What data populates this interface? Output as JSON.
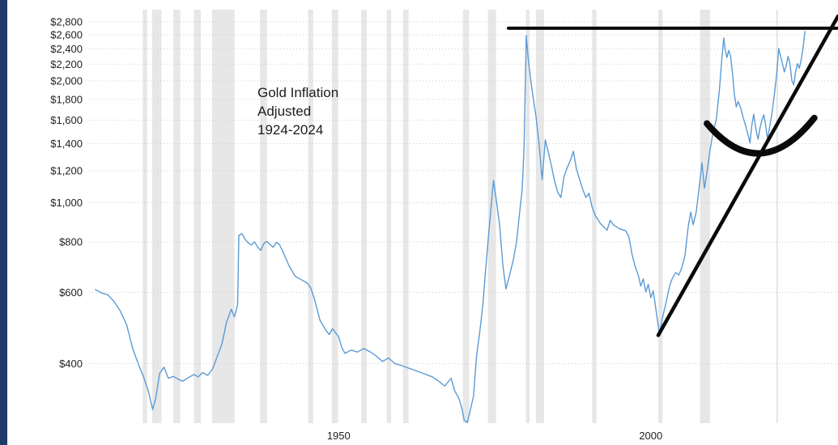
{
  "page": {
    "left_strip_color": "#1e3a66",
    "background_color": "#ffffff"
  },
  "chart_data": {
    "type": "line",
    "title": "Gold Inflation Adjusted 1924-2024",
    "title_lines": [
      "Gold Inflation",
      "Adjusted",
      "1924-2024"
    ],
    "legend": "none",
    "grid": "horizontal-dotted",
    "grid_color": "#cccccc",
    "band_color": "#e7e7e7",
    "axis_label_color": "#222222",
    "x_axis": {
      "range": [
        1910,
        2030
      ],
      "ticks": [
        {
          "year": 1950,
          "label": "1950"
        },
        {
          "year": 2000,
          "label": "2000"
        }
      ]
    },
    "y_axis": {
      "scale": "log",
      "range": [
        285,
        3000
      ],
      "ticks": [
        {
          "value": 2800,
          "label": "$2,800"
        },
        {
          "value": 2600,
          "label": "$2,600"
        },
        {
          "value": 2400,
          "label": "$2,400"
        },
        {
          "value": 2200,
          "label": "$2,200"
        },
        {
          "value": 2000,
          "label": "$2,000"
        },
        {
          "value": 1800,
          "label": "$1,800"
        },
        {
          "value": 1600,
          "label": "$1,600"
        },
        {
          "value": 1400,
          "label": "$1,400"
        },
        {
          "value": 1200,
          "label": "$1,200"
        },
        {
          "value": 1000,
          "label": "$1,000"
        },
        {
          "value": 800,
          "label": "$800"
        },
        {
          "value": 600,
          "label": "$600"
        },
        {
          "value": 400,
          "label": "$400"
        }
      ]
    },
    "recession_bands": [
      [
        1918.6,
        1919.3
      ],
      [
        1920.1,
        1921.6
      ],
      [
        1923.5,
        1924.6
      ],
      [
        1926.8,
        1927.9
      ],
      [
        1929.7,
        1933.3
      ],
      [
        1937.4,
        1938.5
      ],
      [
        1945.1,
        1945.9
      ],
      [
        1948.9,
        1949.9
      ],
      [
        1953.6,
        1954.5
      ],
      [
        1957.7,
        1958.4
      ],
      [
        1960.3,
        1961.2
      ],
      [
        1969.9,
        1970.9
      ],
      [
        1973.9,
        1975.2
      ],
      [
        1980.0,
        1980.6
      ],
      [
        1981.6,
        1982.9
      ],
      [
        1990.6,
        1991.3
      ],
      [
        2001.2,
        2001.9
      ],
      [
        2007.9,
        2009.5
      ],
      [
        2020.1,
        2020.4
      ]
    ],
    "series": [
      {
        "name": "Gold Price (Inflation Adjusted)",
        "color": "#5b9bd5",
        "points": [
          [
            1911,
            610
          ],
          [
            1912,
            598
          ],
          [
            1913,
            592
          ],
          [
            1914,
            570
          ],
          [
            1915,
            540
          ],
          [
            1916,
            500
          ],
          [
            1917,
            435
          ],
          [
            1918,
            395
          ],
          [
            1918.7,
            372
          ],
          [
            1919.5,
            342
          ],
          [
            1920.2,
            308
          ],
          [
            1920.7,
            330
          ],
          [
            1921.3,
            378
          ],
          [
            1922,
            392
          ],
          [
            1922.7,
            368
          ],
          [
            1923.5,
            372
          ],
          [
            1924.3,
            366
          ],
          [
            1925,
            362
          ],
          [
            1926,
            370
          ],
          [
            1926.8,
            376
          ],
          [
            1927.5,
            371
          ],
          [
            1928.2,
            380
          ],
          [
            1929,
            374
          ],
          [
            1929.8,
            388
          ],
          [
            1930.5,
            415
          ],
          [
            1931.3,
            448
          ],
          [
            1932,
            505
          ],
          [
            1932.8,
            545
          ],
          [
            1933.3,
            522
          ],
          [
            1933.8,
            560
          ],
          [
            1934,
            830
          ],
          [
            1934.5,
            838
          ],
          [
            1935,
            812
          ],
          [
            1935.5,
            795
          ],
          [
            1936,
            786
          ],
          [
            1936.5,
            800
          ],
          [
            1937,
            778
          ],
          [
            1937.5,
            762
          ],
          [
            1938,
            792
          ],
          [
            1938.5,
            802
          ],
          [
            1939,
            788
          ],
          [
            1939.5,
            776
          ],
          [
            1940,
            798
          ],
          [
            1940.5,
            788
          ],
          [
            1941,
            760
          ],
          [
            1942,
            700
          ],
          [
            1943,
            658
          ],
          [
            1944,
            645
          ],
          [
            1945,
            632
          ],
          [
            1945.5,
            616
          ],
          [
            1946,
            586
          ],
          [
            1947,
            512
          ],
          [
            1948,
            482
          ],
          [
            1948.5,
            472
          ],
          [
            1949,
            488
          ],
          [
            1950,
            466
          ],
          [
            1950.5,
            438
          ],
          [
            1951,
            424
          ],
          [
            1952,
            432
          ],
          [
            1953,
            427
          ],
          [
            1954,
            436
          ],
          [
            1955,
            428
          ],
          [
            1956,
            418
          ],
          [
            1957,
            405
          ],
          [
            1958,
            413
          ],
          [
            1959,
            400
          ],
          [
            1960,
            396
          ],
          [
            1961,
            391
          ],
          [
            1962,
            386
          ],
          [
            1963,
            381
          ],
          [
            1964,
            376
          ],
          [
            1965,
            371
          ],
          [
            1966,
            362
          ],
          [
            1967,
            352
          ],
          [
            1968,
            368
          ],
          [
            1968.6,
            342
          ],
          [
            1969.2,
            330
          ],
          [
            1969.7,
            312
          ],
          [
            1970.1,
            290
          ],
          [
            1970.6,
            286
          ],
          [
            1971.1,
            308
          ],
          [
            1971.6,
            332
          ],
          [
            1972.1,
            420
          ],
          [
            1972.6,
            478
          ],
          [
            1973.1,
            560
          ],
          [
            1973.6,
            700
          ],
          [
            1974.1,
            860
          ],
          [
            1974.8,
            1135
          ],
          [
            1975.3,
            1000
          ],
          [
            1975.8,
            875
          ],
          [
            1976.3,
            700
          ],
          [
            1976.8,
            612
          ],
          [
            1977.3,
            655
          ],
          [
            1978,
            725
          ],
          [
            1978.5,
            800
          ],
          [
            1979,
            950
          ],
          [
            1979.4,
            1080
          ],
          [
            1979.7,
            1380
          ],
          [
            1980.05,
            2590
          ],
          [
            1980.35,
            2280
          ],
          [
            1980.7,
            2050
          ],
          [
            1981.1,
            1840
          ],
          [
            1981.6,
            1640
          ],
          [
            1982.1,
            1400
          ],
          [
            1982.6,
            1140
          ],
          [
            1983.1,
            1430
          ],
          [
            1983.6,
            1330
          ],
          [
            1984.1,
            1230
          ],
          [
            1984.6,
            1130
          ],
          [
            1985.1,
            1060
          ],
          [
            1985.6,
            1030
          ],
          [
            1986.1,
            1160
          ],
          [
            1986.6,
            1220
          ],
          [
            1987.1,
            1270
          ],
          [
            1987.6,
            1340
          ],
          [
            1988.1,
            1210
          ],
          [
            1988.6,
            1140
          ],
          [
            1989.1,
            1080
          ],
          [
            1989.6,
            1030
          ],
          [
            1990.1,
            1055
          ],
          [
            1990.6,
            975
          ],
          [
            1991.1,
            930
          ],
          [
            1992,
            885
          ],
          [
            1993,
            855
          ],
          [
            1993.5,
            905
          ],
          [
            1994,
            882
          ],
          [
            1995,
            862
          ],
          [
            1996,
            852
          ],
          [
            1996.5,
            822
          ],
          [
            1997,
            745
          ],
          [
            1997.5,
            695
          ],
          [
            1998,
            662
          ],
          [
            1998.4,
            622
          ],
          [
            1998.8,
            648
          ],
          [
            1999.2,
            602
          ],
          [
            1999.6,
            628
          ],
          [
            2000,
            582
          ],
          [
            2000.4,
            606
          ],
          [
            2000.8,
            548
          ],
          [
            2001.4,
            474
          ],
          [
            2001.9,
            522
          ],
          [
            2002.4,
            562
          ],
          [
            2003,
            622
          ],
          [
            2003.5,
            652
          ],
          [
            2004,
            672
          ],
          [
            2004.5,
            662
          ],
          [
            2005,
            692
          ],
          [
            2005.5,
            742
          ],
          [
            2006,
            872
          ],
          [
            2006.4,
            948
          ],
          [
            2006.8,
            882
          ],
          [
            2007.3,
            952
          ],
          [
            2007.8,
            1105
          ],
          [
            2008.2,
            1255
          ],
          [
            2008.6,
            1085
          ],
          [
            2009,
            1185
          ],
          [
            2009.5,
            1350
          ],
          [
            2010,
            1500
          ],
          [
            2010.5,
            1605
          ],
          [
            2011,
            1900
          ],
          [
            2011.4,
            2280
          ],
          [
            2011.7,
            2555
          ],
          [
            2011.9,
            2400
          ],
          [
            2012.2,
            2285
          ],
          [
            2012.5,
            2380
          ],
          [
            2012.8,
            2300
          ],
          [
            2013.1,
            2090
          ],
          [
            2013.4,
            1850
          ],
          [
            2013.7,
            1725
          ],
          [
            2014,
            1780
          ],
          [
            2014.4,
            1715
          ],
          [
            2014.8,
            1625
          ],
          [
            2015.2,
            1550
          ],
          [
            2015.6,
            1468
          ],
          [
            2015.9,
            1405
          ],
          [
            2016.2,
            1555
          ],
          [
            2016.5,
            1655
          ],
          [
            2016.9,
            1505
          ],
          [
            2017.2,
            1435
          ],
          [
            2017.5,
            1530
          ],
          [
            2017.8,
            1600
          ],
          [
            2018.1,
            1650
          ],
          [
            2018.4,
            1555
          ],
          [
            2018.7,
            1435
          ],
          [
            2019,
            1525
          ],
          [
            2019.4,
            1655
          ],
          [
            2019.8,
            1850
          ],
          [
            2020.2,
            2100
          ],
          [
            2020.5,
            2405
          ],
          [
            2020.8,
            2300
          ],
          [
            2021.1,
            2205
          ],
          [
            2021.4,
            2105
          ],
          [
            2021.7,
            2180
          ],
          [
            2022,
            2300
          ],
          [
            2022.3,
            2205
          ],
          [
            2022.6,
            2005
          ],
          [
            2022.9,
            1955
          ],
          [
            2023.2,
            2105
          ],
          [
            2023.5,
            2205
          ],
          [
            2023.8,
            2150
          ],
          [
            2024.1,
            2255
          ],
          [
            2024.4,
            2405
          ],
          [
            2024.7,
            2650
          ]
        ]
      }
    ],
    "annotations": {
      "color": "#0a0a0a",
      "resistance_line": {
        "from": [
          1977.2,
          2700
        ],
        "to": [
          2030,
          2700
        ],
        "width": 4
      },
      "support_trendline": {
        "from": [
          2001.2,
          470
        ],
        "to": [
          2030,
          2890
        ],
        "width": 4.5
      },
      "cup_arc": {
        "start": [
          2009.0,
          1570
        ],
        "control": [
          2017.5,
          1100
        ],
        "end": [
          2026.2,
          1620
        ],
        "width": 8
      }
    }
  }
}
